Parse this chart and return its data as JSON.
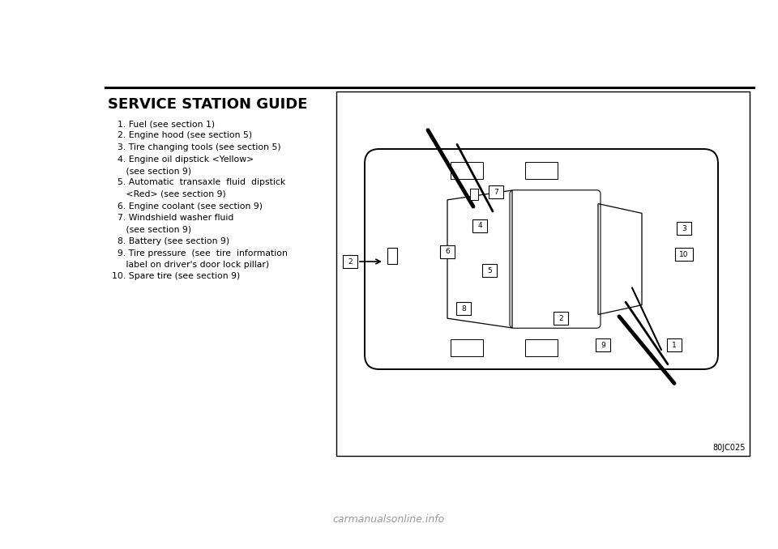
{
  "bg_color": "#ffffff",
  "title": "SERVICE STATION GUIDE",
  "title_fontsize": 13,
  "title_fontweight": "bold",
  "list_items": [
    [
      "  1. Fuel (see section 1)",
      false
    ],
    [
      "  2. Engine hood (see section 5)",
      false
    ],
    [
      "  3. Tire changing tools (see section 5)",
      false
    ],
    [
      "  4. Engine oil dipstick <Yellow>",
      false
    ],
    [
      "     (see section 9)",
      false
    ],
    [
      "  5. Automatic  transaxle  fluid  dipstick",
      false
    ],
    [
      "     <Red> (see section 9)",
      false
    ],
    [
      "  6. Engine coolant (see section 9)",
      false
    ],
    [
      "  7. Windshield washer fluid",
      false
    ],
    [
      "     (see section 9)",
      false
    ],
    [
      "  8. Battery (see section 9)",
      false
    ],
    [
      "  9. Tire pressure  (see  tire  information",
      false
    ],
    [
      "     label on driver's door lock pillar)",
      false
    ],
    [
      "10. Spare tire (see section 9)",
      false
    ]
  ],
  "list_fontsize": 7.8,
  "watermark": "carmanualsonline.info",
  "code_text": "80JC025"
}
